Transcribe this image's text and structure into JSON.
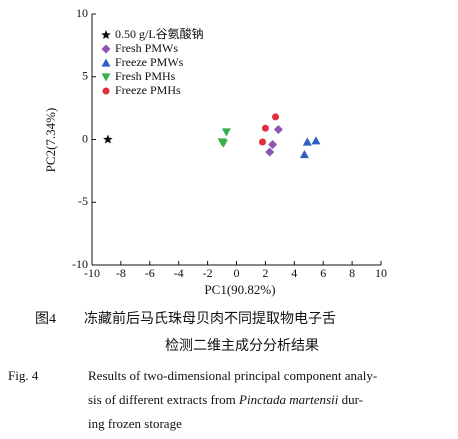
{
  "chart_data": {
    "type": "scatter",
    "xlabel": "PC1(90.82%)",
    "ylabel": "PC2(7.34%)",
    "xlim": [
      -10,
      10
    ],
    "xticks": [
      -10,
      -8,
      -6,
      -4,
      -2,
      0,
      2,
      4,
      6,
      8,
      10
    ],
    "ylim": [
      -10,
      10
    ],
    "yticks": [
      -10,
      -5,
      0,
      5,
      10
    ],
    "legend": "upper left",
    "series": [
      {
        "name": "0.50 g/L谷氨酸钠",
        "color": "#111111",
        "marker": "star",
        "x": [
          -8.9
        ],
        "values": [
          0
        ]
      },
      {
        "name": "Fresh PMWs",
        "color": "#8e55b3",
        "marker": "diamond",
        "x": [
          2.9,
          2.5,
          2.3
        ],
        "values": [
          0.8,
          -0.4,
          -1.0
        ]
      },
      {
        "name": "Freeze PMWs",
        "color": "#2f5fc0",
        "marker": "triangle-up",
        "x": [
          5.5,
          4.9,
          4.7
        ],
        "values": [
          -0.1,
          -0.2,
          -1.2
        ]
      },
      {
        "name": "Fresh PMHs",
        "color": "#3aae4a",
        "marker": "triangle-down",
        "x": [
          -0.7,
          -1.0,
          -0.9
        ],
        "values": [
          0.6,
          -0.2,
          -0.3
        ]
      },
      {
        "name": "Freeze PMHs",
        "color": "#e0303f",
        "marker": "circle",
        "x": [
          2.7,
          2.0,
          1.8
        ],
        "values": [
          1.8,
          0.9,
          -0.2
        ]
      }
    ]
  },
  "caption": {
    "zh_label": "图4",
    "zh_lines": [
      "冻藏前后马氏珠母贝肉不同提取物电子舌",
      "检测二维主成分分析结果"
    ],
    "en_label": "Fig. 4",
    "en_line1": "Results of two-dimensional principal component analy-",
    "en_line2_a": "sis of different extracts from ",
    "en_line2_italic": "Pinctada martensii",
    "en_line2_b": " dur-",
    "en_line3": "ing frozen storage"
  }
}
